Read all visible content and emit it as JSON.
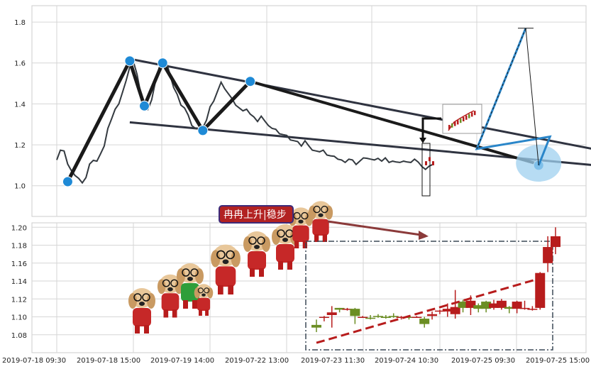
{
  "chart_data": [
    {
      "type": "line",
      "name": "price-wedge",
      "ylim": [
        0.85,
        1.88
      ],
      "y_ticks": [
        "1.0",
        "1.2",
        "1.4",
        "1.6",
        "1.8"
      ],
      "y_tick_values": [
        1.0,
        1.2,
        1.4,
        1.6,
        1.8
      ],
      "grid": true,
      "series": [
        {
          "values": [
            1.12,
            1.18,
            1.17,
            1.1,
            1.08,
            1.05,
            1.03,
            1.02,
            1.04,
            1.1,
            1.13,
            1.12,
            1.15,
            1.2,
            1.28,
            1.32,
            1.38,
            1.4,
            1.45,
            1.52,
            1.58,
            1.6,
            1.55,
            1.45,
            1.4,
            1.38,
            1.42,
            1.5,
            1.58,
            1.62,
            1.6,
            1.55,
            1.48,
            1.44,
            1.4,
            1.38,
            1.34,
            1.3,
            1.28,
            1.27,
            1.29,
            1.32,
            1.38,
            1.42,
            1.46,
            1.5,
            1.48,
            1.45,
            1.42,
            1.4,
            1.38,
            1.36,
            1.38,
            1.35,
            1.33,
            1.32,
            1.34,
            1.31,
            1.3,
            1.28,
            1.27,
            1.26,
            1.25,
            1.24,
            1.23,
            1.22,
            1.21,
            1.2,
            1.22,
            1.19,
            1.18,
            1.17,
            1.16,
            1.18,
            1.15,
            1.14,
            1.15,
            1.13,
            1.12,
            1.12,
            1.13,
            1.12,
            1.11,
            1.12,
            1.13,
            1.14,
            1.13,
            1.12,
            1.14,
            1.12,
            1.13,
            1.12,
            1.12,
            1.11,
            1.12,
            1.12,
            1.11,
            1.12,
            1.13,
            1.11,
            1.1,
            1.08,
            1.09,
            1.11
          ]
        }
      ],
      "pattern_points": [
        {
          "x": 3,
          "y": 1.02
        },
        {
          "x": 20,
          "y": 1.61
        },
        {
          "x": 24,
          "y": 1.39
        },
        {
          "x": 29,
          "y": 1.6
        },
        {
          "x": 40,
          "y": 1.27
        },
        {
          "x": 53,
          "y": 1.51
        },
        {
          "x": 132,
          "y": 1.1
        }
      ],
      "trendlines": [
        {
          "from": {
            "x": 20,
            "y": 1.62
          },
          "to": {
            "x": 190,
            "y": 1.03
          }
        },
        {
          "from": {
            "x": 20,
            "y": 1.31
          },
          "to": {
            "x": 190,
            "y": 1.03
          }
        },
        {
          "from": {
            "x": 53,
            "y": 1.51
          },
          "to": {
            "x": 133,
            "y": 1.1
          }
        }
      ],
      "projection": [
        {
          "x": 132,
          "y": 1.1
        },
        {
          "x": 147,
          "y": 1.18
        },
        {
          "x": 162,
          "y": 1.77
        }
      ]
    },
    {
      "type": "candlestick",
      "name": "zoom-candles",
      "ylim": [
        1.06,
        1.205
      ],
      "y_ticks": [
        "1.08",
        "1.10",
        "1.12",
        "1.14",
        "1.16",
        "1.18",
        "1.20"
      ],
      "y_tick_values": [
        1.08,
        1.1,
        1.12,
        1.14,
        1.16,
        1.18,
        1.2
      ],
      "x_ticks": [
        "2019-07-18 09:30",
        "2019-07-18 15:00",
        "2019-07-19 14:00",
        "2019-07-22 13:00",
        "2019-07-23 11:30",
        "2019-07-24 10:30",
        "2019-07-25 09:30",
        "2019-07-25 15:00"
      ],
      "candles": [
        {
          "o": 1.091,
          "h": 1.097,
          "l": 1.083,
          "c": 1.088
        },
        {
          "o": 1.099,
          "h": 1.101,
          "l": 1.095,
          "c": 1.1
        },
        {
          "o": 1.102,
          "h": 1.112,
          "l": 1.088,
          "c": 1.105
        },
        {
          "o": 1.11,
          "h": 1.11,
          "l": 1.105,
          "c": 1.108
        },
        {
          "o": 1.108,
          "h": 1.11,
          "l": 1.107,
          "c": 1.109
        },
        {
          "o": 1.109,
          "h": 1.11,
          "l": 1.092,
          "c": 1.101
        },
        {
          "o": 1.1,
          "h": 1.101,
          "l": 1.099,
          "c": 1.1
        },
        {
          "o": 1.099,
          "h": 1.102,
          "l": 1.097,
          "c": 1.098
        },
        {
          "o": 1.101,
          "h": 1.103,
          "l": 1.099,
          "c": 1.1
        },
        {
          "o": 1.1,
          "h": 1.102,
          "l": 1.098,
          "c": 1.099
        },
        {
          "o": 1.101,
          "h": 1.104,
          "l": 1.099,
          "c": 1.1
        },
        {
          "o": 1.099,
          "h": 1.101,
          "l": 1.097,
          "c": 1.1
        },
        {
          "o": 1.1,
          "h": 1.101,
          "l": 1.097,
          "c": 1.099
        },
        {
          "o": 1.1,
          "h": 1.101,
          "l": 1.099,
          "c": 1.1
        },
        {
          "o": 1.098,
          "h": 1.1,
          "l": 1.088,
          "c": 1.092
        },
        {
          "o": 1.101,
          "h": 1.106,
          "l": 1.097,
          "c": 1.103
        },
        {
          "o": 1.106,
          "h": 1.108,
          "l": 1.103,
          "c": 1.107
        },
        {
          "o": 1.106,
          "h": 1.115,
          "l": 1.1,
          "c": 1.109
        },
        {
          "o": 1.103,
          "h": 1.13,
          "l": 1.098,
          "c": 1.111
        },
        {
          "o": 1.117,
          "h": 1.119,
          "l": 1.105,
          "c": 1.11
        },
        {
          "o": 1.11,
          "h": 1.124,
          "l": 1.102,
          "c": 1.118
        },
        {
          "o": 1.113,
          "h": 1.115,
          "l": 1.105,
          "c": 1.109
        },
        {
          "o": 1.117,
          "h": 1.118,
          "l": 1.105,
          "c": 1.109
        },
        {
          "o": 1.11,
          "h": 1.119,
          "l": 1.108,
          "c": 1.115
        },
        {
          "o": 1.11,
          "h": 1.12,
          "l": 1.108,
          "c": 1.118
        },
        {
          "o": 1.111,
          "h": 1.112,
          "l": 1.104,
          "c": 1.109
        },
        {
          "o": 1.109,
          "h": 1.118,
          "l": 1.104,
          "c": 1.117
        },
        {
          "o": 1.11,
          "h": 1.118,
          "l": 1.108,
          "c": 1.11
        },
        {
          "o": 1.108,
          "h": 1.112,
          "l": 1.107,
          "c": 1.109
        },
        {
          "o": 1.11,
          "h": 1.15,
          "l": 1.108,
          "c": 1.149
        },
        {
          "o": 1.16,
          "h": 1.19,
          "l": 1.15,
          "c": 1.178
        },
        {
          "o": 1.178,
          "h": 1.2,
          "l": 1.17,
          "c": 1.19
        }
      ],
      "trend": {
        "from": {
          "x": 0,
          "y": 1.071
        },
        "to": {
          "x": 29,
          "y": 1.143
        }
      }
    }
  ],
  "annotation": {
    "text": "冉冉上升|稳步",
    "target": "zoom-box"
  },
  "colors": {
    "price": "#343a40",
    "pattern": "#1a1a1a",
    "marker": "#1f8ad6",
    "up": "#b71c1c",
    "down": "#6b8e23",
    "projection": "#2a86c9",
    "highlight": "#9fd0ef",
    "grid": "#d6d6d6",
    "annotation_arrow": "#8b3a3a",
    "bubble_fill": "#b22222",
    "bubble_border": "#3d2b7a"
  }
}
